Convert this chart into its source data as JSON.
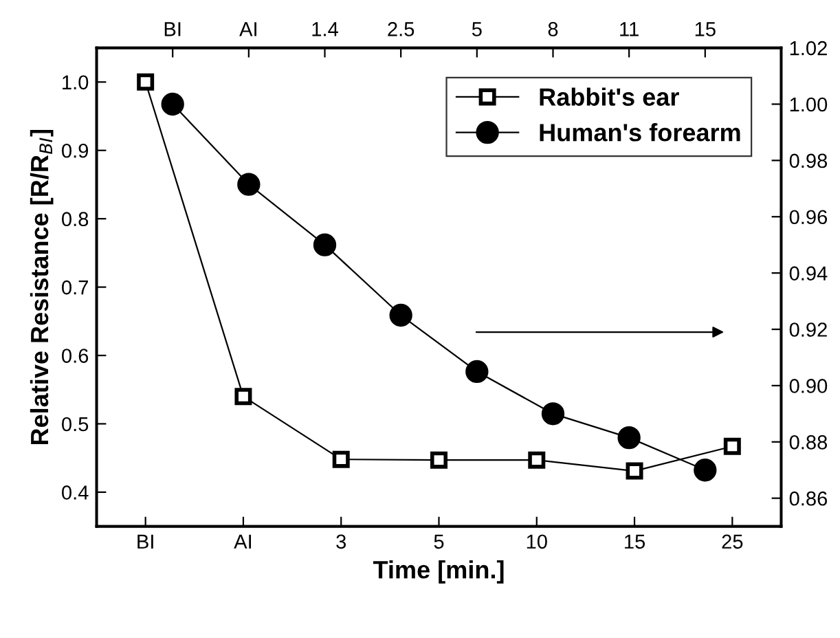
{
  "chart_data": [
    {
      "type": "line",
      "xlabel": "Time [min.]",
      "ylabel": "Relative Resistance [R/R$_{BI}$]",
      "categories": [
        "BI",
        "AI",
        "3",
        "5",
        "10",
        "15",
        "25"
      ],
      "series": [
        {
          "name": "Rabbit's ear",
          "color": "#000000",
          "marker": "square",
          "values": [
            1.0,
            0.54,
            0.448,
            0.447,
            0.447,
            0.431,
            0.467
          ]
        }
      ],
      "ylim": [
        0.35,
        1.05
      ],
      "yticks": [
        {
          "value": 0.4,
          "label": "0.4"
        },
        {
          "value": 0.5,
          "label": "0.5"
        },
        {
          "value": 0.6,
          "label": "0.6"
        },
        {
          "value": 0.7,
          "label": "0.7"
        },
        {
          "value": 0.8,
          "label": "0.8"
        },
        {
          "value": 0.9,
          "label": "0.9"
        },
        {
          "value": 1.0,
          "label": "1.0"
        }
      ],
      "legend": "top right",
      "grid": false,
      "line_style": "solid"
    },
    {
      "type": "line",
      "categories": [
        "BI",
        "AI",
        "1.4",
        "2.5",
        "5",
        "8",
        "11",
        "15"
      ],
      "series": [
        {
          "name": "Human's forearm",
          "color": "#000000",
          "marker": "circle",
          "axis": "y2",
          "values": [
            1.0,
            0.9715,
            0.95,
            0.925,
            0.905,
            0.89,
            0.8815,
            0.87
          ]
        }
      ],
      "y2lim": [
        0.85,
        1.02
      ],
      "y2ticks": [
        {
          "value": 0.86,
          "label": "0.86"
        },
        {
          "value": 0.88,
          "label": "0.88"
        },
        {
          "value": 0.9,
          "label": "0.90"
        },
        {
          "value": 0.92,
          "label": "0.92"
        },
        {
          "value": 0.94,
          "label": "0.94"
        },
        {
          "value": 0.96,
          "label": "0.96"
        },
        {
          "value": 0.98,
          "label": "0.98"
        },
        {
          "value": 1.0,
          "label": "1.00"
        },
        {
          "value": 1.02,
          "label": "1.02"
        }
      ],
      "grid": false,
      "line_style": "solid"
    }
  ]
}
